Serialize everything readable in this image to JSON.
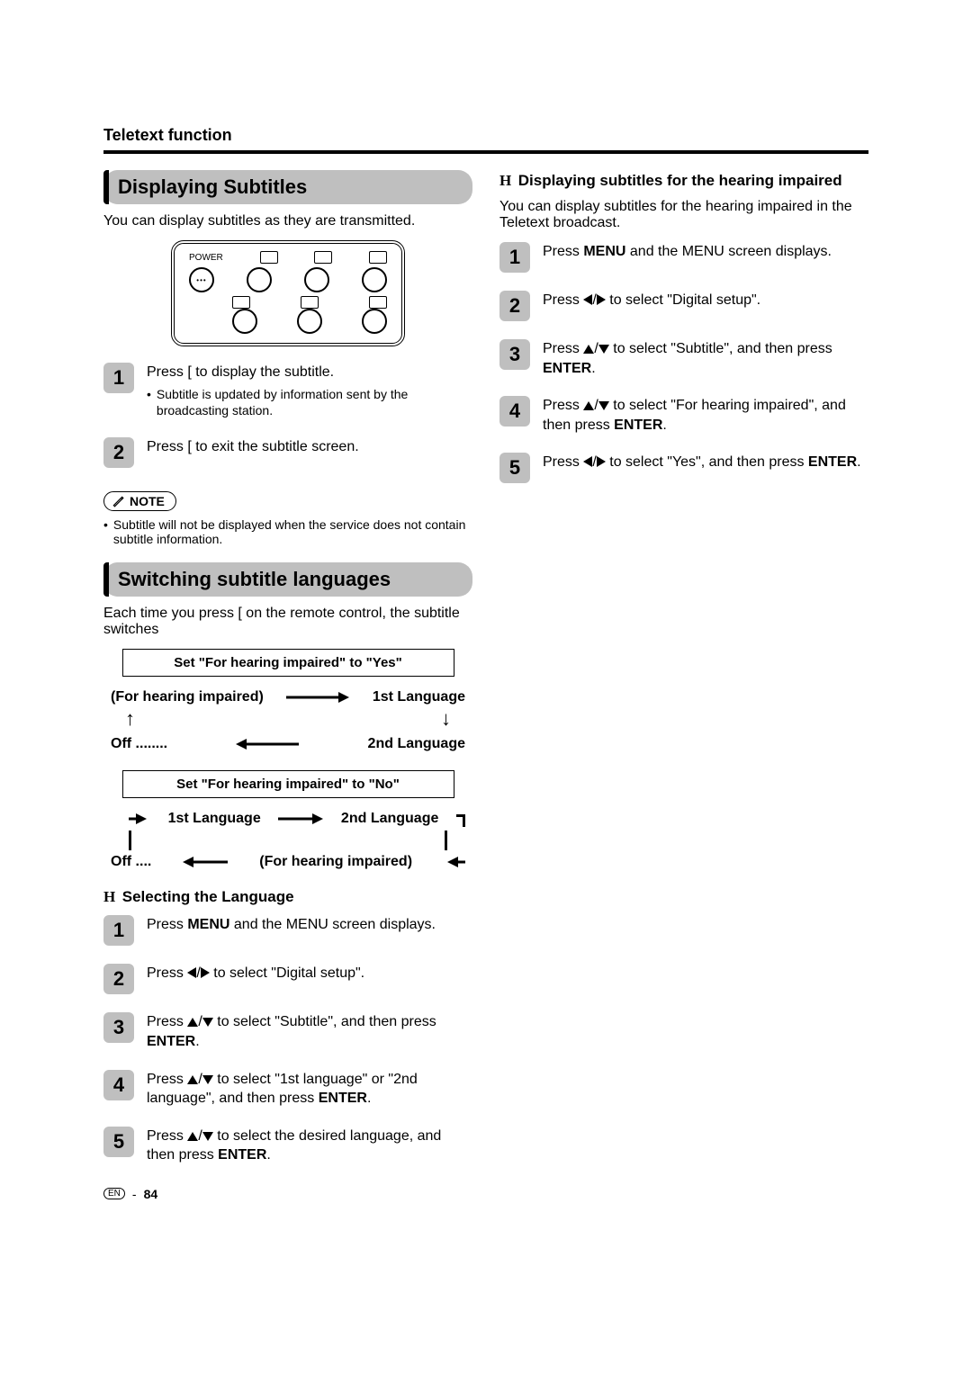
{
  "page": {
    "section_label": "Teletext function",
    "footer_lang": "EN",
    "footer_sep": "-",
    "footer_page": "84"
  },
  "left": {
    "h1": "Displaying Subtitles",
    "lead": "You can display subtitles as they are transmitted.",
    "remote": {
      "power_label": "POWER"
    },
    "steps1": [
      {
        "n": "1",
        "line": "Press [  to display the subtitle.",
        "sub": "Subtitle is updated by information sent by the broadcasting station."
      },
      {
        "n": "2",
        "line": "Press [  to exit the subtitle screen."
      }
    ],
    "note_label": "NOTE",
    "note_body": "Subtitle will not be displayed when the service does not contain subtitle information.",
    "h2": "Switching subtitle languages",
    "lead2": "Each time you press [  on the remote control, the subtitle switches",
    "diagram": {
      "box_yes": "Set \"For hearing impaired\" to \"Yes\"",
      "row1_left": "(For hearing impaired)",
      "row1_right": "1st Language",
      "row2_left": "Off ........",
      "row2_right": "2nd Language",
      "box_no": "Set \"For hearing impaired\" to \"No\"",
      "row3_left": "1st Language",
      "row3_right": "2nd Language",
      "row4_left": "Off ....",
      "row4_right": "(For hearing impaired)"
    },
    "h3": "Selecting the Language",
    "steps2": [
      {
        "n": "1",
        "pre": "Press ",
        "b1": "MENU",
        "post": " and the MENU screen displays."
      },
      {
        "n": "2",
        "pre": "Press ",
        "arrows": "lr",
        "post": " to select \"Digital setup\"."
      },
      {
        "n": "3",
        "pre": "Press ",
        "arrows": "ud",
        "post": " to select \"Subtitle\", and then press ",
        "b2": "ENTER",
        "tail": "."
      },
      {
        "n": "4",
        "pre": "Press ",
        "arrows": "ud",
        "post": " to select \"1st language\" or \"2nd language\", and then press ",
        "b2": "ENTER",
        "tail": "."
      },
      {
        "n": "5",
        "pre": "Press ",
        "arrows": "ud",
        "post": " to select the desired language, and then press ",
        "b2": "ENTER",
        "tail": "."
      }
    ]
  },
  "right": {
    "h1": "Displaying subtitles for the hearing impaired",
    "lead": "You can display subtitles for the hearing impaired in the Teletext broadcast.",
    "steps": [
      {
        "n": "1",
        "pre": "Press ",
        "b1": "MENU",
        "post": " and the MENU screen displays."
      },
      {
        "n": "2",
        "pre": "Press ",
        "arrows": "lr",
        "post": " to select \"Digital setup\"."
      },
      {
        "n": "3",
        "pre": "Press ",
        "arrows": "ud",
        "post": " to select \"Subtitle\", and then press ",
        "b2": "ENTER",
        "tail": "."
      },
      {
        "n": "4",
        "pre": "Press ",
        "arrows": "ud",
        "post": " to select \"For hearing impaired\", and then press ",
        "b2": "ENTER",
        "tail": "."
      },
      {
        "n": "5",
        "pre": "Press ",
        "arrows": "lr",
        "post": " to select \"Yes\", and then press ",
        "b2": "ENTER",
        "tail": "."
      }
    ]
  }
}
